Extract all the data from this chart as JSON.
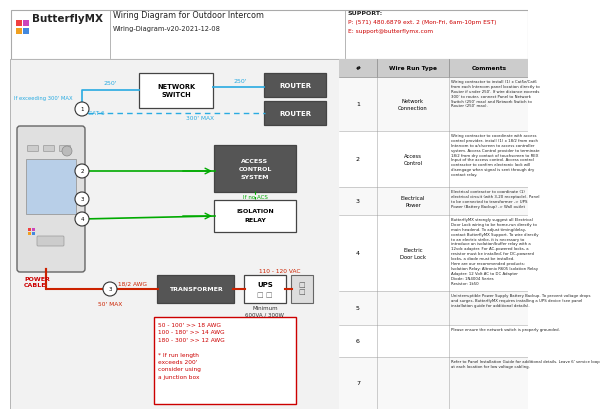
{
  "title": "Wiring Diagram for Outdoor Intercom",
  "subtitle": "Wiring-Diagram-v20-2021-12-08",
  "logo_text": "ButterflyMX",
  "support_line1": "SUPPORT:",
  "support_line2": "P: (571) 480.6879 ext. 2 (Mon-Fri, 6am-10pm EST)",
  "support_line3": "E: support@butterflymx.com",
  "bg_color": "#ffffff",
  "cyan_color": "#29abe2",
  "green_color": "#00aa00",
  "red_color": "#cc0000",
  "dark_box_fill": "#555555",
  "row_numbers": [
    "1",
    "2",
    "3",
    "4",
    "5",
    "6",
    "7"
  ],
  "wire_run_types": [
    "Network\nConnection",
    "Access\nControl",
    "Electrical\nPower",
    "Electric\nDoor Lock",
    "",
    "",
    ""
  ],
  "comments": [
    "Wiring contractor to install (1) x Cat5e/Cat6\nfrom each Intercom panel location directly to\nRouter if under 250'. If wire distance exceeds\n300' to router, connect Panel to Network\nSwitch (250' max) and Network Switch to\nRouter (250' max).",
    "Wiring contractor to coordinate with access\ncontrol provider, install (1) x 18/2 from each\nIntercom to a/c/screen to access controller\nsystem. Access Control provider to terminate\n18/2 from dry contact of touchscreen to REX\nInput of the access control. Access control\ncontractor to confirm electronic lock will\ndisengage when signal is sent through dry\ncontact relay.",
    "Electrical contractor to coordinate (1)\nelectrical circuit (with 3-20 receptacle). Panel\nto be connected to transformer -> UPS\nPower (Battery Backup) -> Wall outlet",
    "ButterflyMX strongly suggest all Electrical\nDoor Lock wiring to be home-run directly to\nmain headend. To adjust timing/delay,\ncontact ButterflyMX Support. To wire directly\nto an electric strike, it is necessary to\nintroduce an isolation/buffer relay with a\n12vdc adapter. For AC-powered locks, a\nresistor must be installed; for DC-powered\nlocks, a diode must be installed.\nHere are our recommended products:\nIsolation Relay: Altronix R605 Isolation Relay\nAdapter: 12 Volt AC to DC Adapter\nDiode: 1N4004 Series\nResistor: 1k50",
    "Uninterruptible Power Supply Battery Backup. To prevent voltage drops\nand surges, ButterflyMX requires installing a UPS device (see panel\ninstallation guide for additional details).",
    "Please ensure the network switch is properly grounded.",
    "Refer to Panel Installation Guide for additional details. Leave 6' service loop\nat each location for low voltage cabling."
  ],
  "awg_note": "50 - 100' >> 18 AWG\n100 - 180' >> 14 AWG\n180 - 300' >> 12 AWG\n\n* If run length\nexceeds 200'\nconsider using\na junction box"
}
